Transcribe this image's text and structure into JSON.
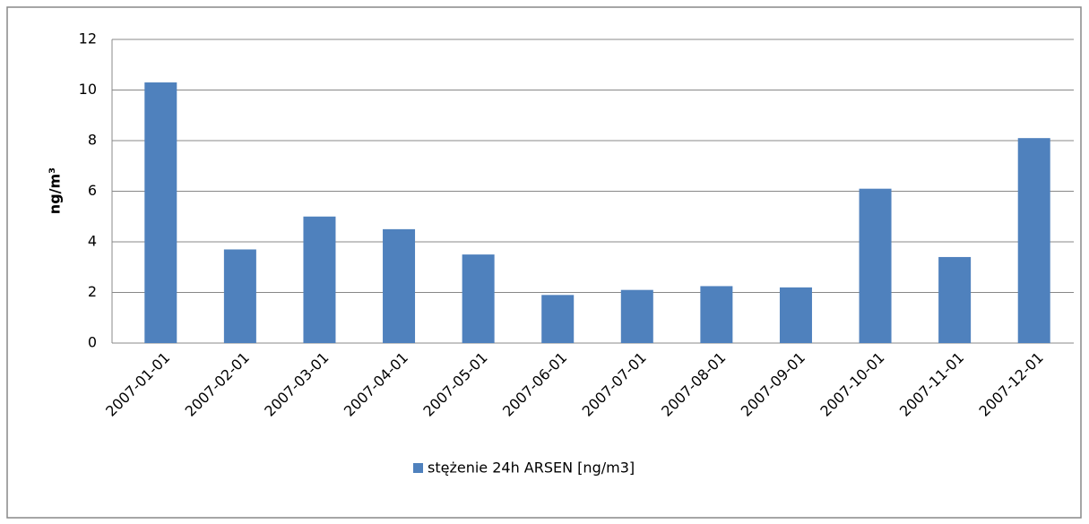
{
  "chart_data": {
    "type": "bar",
    "y_label": "ng/m³",
    "categories": [
      "2007-01-01",
      "2007-02-01",
      "2007-03-01",
      "2007-04-01",
      "2007-05-01",
      "2007-06-01",
      "2007-07-01",
      "2007-08-01",
      "2007-09-01",
      "2007-10-01",
      "2007-11-01",
      "2007-12-01"
    ],
    "series": [
      {
        "name": "stężenie 24h ARSEN [ng/m3]",
        "color": "#4f81bd",
        "values": [
          10.3,
          3.7,
          5.0,
          4.5,
          3.5,
          1.9,
          2.1,
          2.25,
          2.2,
          6.1,
          3.4,
          8.1
        ]
      }
    ],
    "ylim": [
      0,
      12
    ],
    "yticks": [
      0,
      2,
      4,
      6,
      8,
      10,
      12
    ],
    "grid": true,
    "legend": "bottom"
  }
}
